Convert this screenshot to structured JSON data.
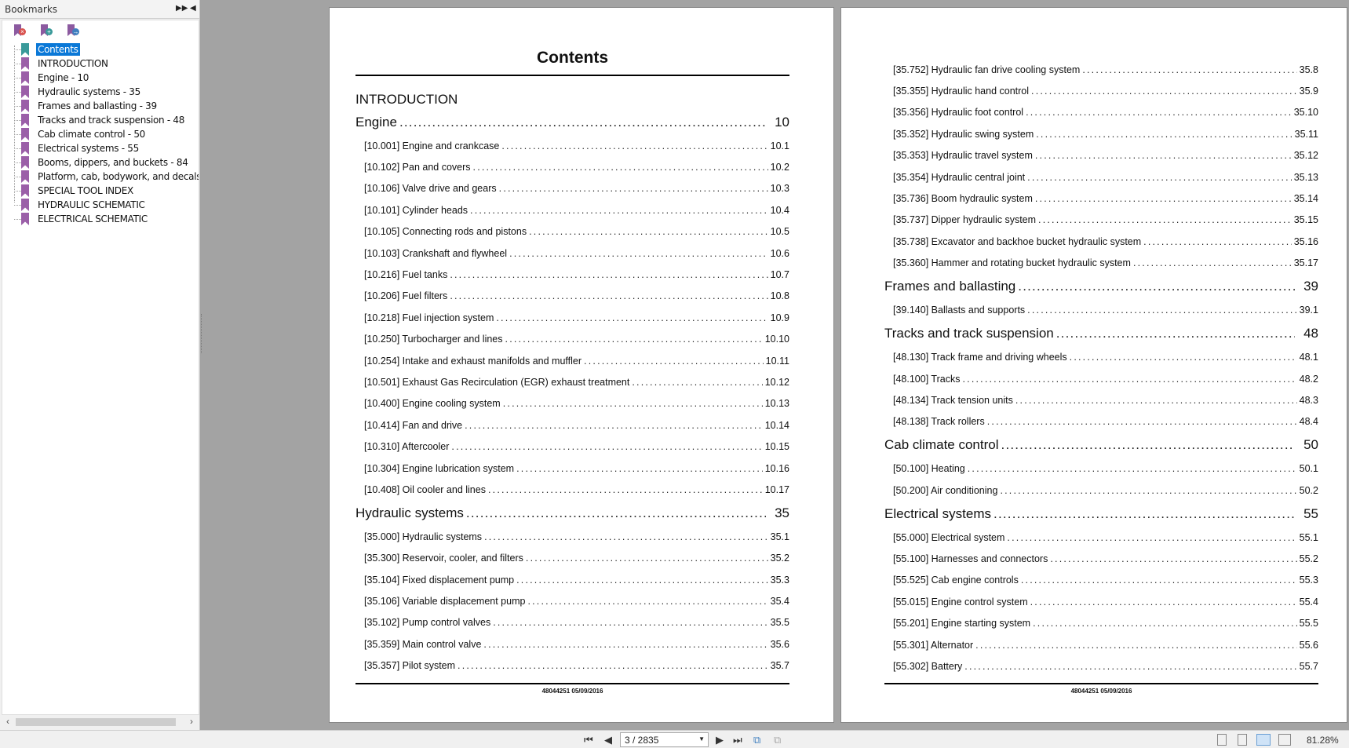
{
  "sidebar": {
    "title": "Bookmarks",
    "controls": {
      "options_icon": "double-arrow-right-icon",
      "collapse_icon": "triangle-left-icon"
    },
    "tools": [
      {
        "name": "delete-bookmark",
        "icon": "bookmark-delete-icon",
        "color": "#d9534f",
        "glyph": "×"
      },
      {
        "name": "add-bookmark",
        "icon": "bookmark-add-icon",
        "color": "#3a9a9a",
        "glyph": "+"
      },
      {
        "name": "goto-bookmark",
        "icon": "bookmark-goto-icon",
        "color": "#3f7fbf",
        "glyph": "→"
      }
    ],
    "items": [
      {
        "label": "Contents",
        "selected": true
      },
      {
        "label": "INTRODUCTION"
      },
      {
        "label": "Engine - 10"
      },
      {
        "label": "Hydraulic systems - 35"
      },
      {
        "label": "Frames and ballasting - 39"
      },
      {
        "label": "Tracks and track suspension - 48"
      },
      {
        "label": "Cab climate control - 50"
      },
      {
        "label": "Electrical systems - 55"
      },
      {
        "label": "Booms, dippers, and buckets - 84"
      },
      {
        "label": "Platform, cab, bodywork, and decals -"
      },
      {
        "label": "SPECIAL TOOL INDEX"
      },
      {
        "label": "HYDRAULIC SCHEMATIC"
      },
      {
        "label": "ELECTRICAL SCHEMATIC"
      }
    ],
    "selected_color": "#0a78d7"
  },
  "page1": {
    "title": "Contents",
    "footer": "48044251 05/09/2016",
    "lines": [
      {
        "type": "intro",
        "text": "INTRODUCTION"
      },
      {
        "type": "section",
        "text": "Engine",
        "page": "10"
      },
      {
        "type": "entry",
        "text": "[10.001] Engine and crankcase",
        "page": "10.1"
      },
      {
        "type": "entry",
        "text": "[10.102] Pan and covers",
        "page": "10.2"
      },
      {
        "type": "entry",
        "text": "[10.106] Valve drive and gears",
        "page": "10.3"
      },
      {
        "type": "entry",
        "text": "[10.101] Cylinder heads",
        "page": "10.4"
      },
      {
        "type": "entry",
        "text": "[10.105] Connecting rods and pistons",
        "page": "10.5"
      },
      {
        "type": "entry",
        "text": "[10.103] Crankshaft and flywheel",
        "page": "10.6"
      },
      {
        "type": "entry",
        "text": "[10.216] Fuel tanks",
        "page": "10.7"
      },
      {
        "type": "entry",
        "text": "[10.206] Fuel filters",
        "page": "10.8"
      },
      {
        "type": "entry",
        "text": "[10.218] Fuel injection system",
        "page": "10.9"
      },
      {
        "type": "entry",
        "text": "[10.250] Turbocharger and lines",
        "page": "10.10"
      },
      {
        "type": "entry",
        "text": "[10.254] Intake and exhaust manifolds and muffler",
        "page": "10.11"
      },
      {
        "type": "entry",
        "text": "[10.501] Exhaust Gas Recirculation (EGR) exhaust treatment",
        "page": "10.12"
      },
      {
        "type": "entry",
        "text": "[10.400] Engine cooling system",
        "page": "10.13"
      },
      {
        "type": "entry",
        "text": "[10.414] Fan and drive",
        "page": "10.14"
      },
      {
        "type": "entry",
        "text": "[10.310] Aftercooler",
        "page": "10.15"
      },
      {
        "type": "entry",
        "text": "[10.304] Engine lubrication system",
        "page": "10.16"
      },
      {
        "type": "entry",
        "text": "[10.408] Oil cooler and lines",
        "page": "10.17"
      },
      {
        "type": "section",
        "text": "Hydraulic systems",
        "page": "35"
      },
      {
        "type": "entry",
        "text": "[35.000] Hydraulic systems",
        "page": "35.1"
      },
      {
        "type": "entry",
        "text": "[35.300] Reservoir, cooler, and filters",
        "page": "35.2"
      },
      {
        "type": "entry",
        "text": "[35.104] Fixed displacement pump",
        "page": "35.3"
      },
      {
        "type": "entry",
        "text": "[35.106] Variable displacement pump",
        "page": "35.4"
      },
      {
        "type": "entry",
        "text": "[35.102] Pump control valves",
        "page": "35.5"
      },
      {
        "type": "entry",
        "text": "[35.359] Main control valve",
        "page": "35.6"
      },
      {
        "type": "entry",
        "text": "[35.357] Pilot system",
        "page": "35.7"
      }
    ]
  },
  "page2": {
    "footer": "48044251 05/09/2016",
    "lines": [
      {
        "type": "entry",
        "text": "[35.752] Hydraulic fan drive cooling system",
        "page": "35.8"
      },
      {
        "type": "entry",
        "text": "[35.355] Hydraulic hand control",
        "page": "35.9"
      },
      {
        "type": "entry",
        "text": "[35.356] Hydraulic foot control",
        "page": "35.10"
      },
      {
        "type": "entry",
        "text": "[35.352] Hydraulic swing system",
        "page": "35.11"
      },
      {
        "type": "entry",
        "text": "[35.353] Hydraulic travel system",
        "page": "35.12"
      },
      {
        "type": "entry",
        "text": "[35.354] Hydraulic central joint",
        "page": "35.13"
      },
      {
        "type": "entry",
        "text": "[35.736] Boom hydraulic system",
        "page": "35.14"
      },
      {
        "type": "entry",
        "text": "[35.737] Dipper hydraulic system",
        "page": "35.15"
      },
      {
        "type": "entry",
        "text": "[35.738] Excavator and backhoe bucket hydraulic system",
        "page": "35.16"
      },
      {
        "type": "entry",
        "text": "[35.360] Hammer and rotating bucket hydraulic system",
        "page": "35.17"
      },
      {
        "type": "section",
        "text": "Frames and ballasting",
        "page": "39"
      },
      {
        "type": "entry",
        "text": "[39.140] Ballasts and supports",
        "page": "39.1"
      },
      {
        "type": "section",
        "text": "Tracks and track suspension",
        "page": "48"
      },
      {
        "type": "entry",
        "text": "[48.130] Track frame and driving wheels",
        "page": "48.1"
      },
      {
        "type": "entry",
        "text": "[48.100] Tracks",
        "page": "48.2"
      },
      {
        "type": "entry",
        "text": "[48.134] Track tension units",
        "page": "48.3"
      },
      {
        "type": "entry",
        "text": "[48.138] Track rollers",
        "page": "48.4"
      },
      {
        "type": "section",
        "text": "Cab climate control",
        "page": "50"
      },
      {
        "type": "entry",
        "text": "[50.100] Heating",
        "page": "50.1"
      },
      {
        "type": "entry",
        "text": "[50.200] Air conditioning",
        "page": "50.2"
      },
      {
        "type": "section",
        "text": "Electrical systems",
        "page": "55"
      },
      {
        "type": "entry",
        "text": "[55.000] Electrical system",
        "page": "55.1"
      },
      {
        "type": "entry",
        "text": "[55.100] Harnesses and connectors",
        "page": "55.2"
      },
      {
        "type": "entry",
        "text": "[55.525] Cab engine controls",
        "page": "55.3"
      },
      {
        "type": "entry",
        "text": "[55.015] Engine control system",
        "page": "55.4"
      },
      {
        "type": "entry",
        "text": "[55.201] Engine starting system",
        "page": "55.5"
      },
      {
        "type": "entry",
        "text": "[55.301] Alternator",
        "page": "55.6"
      },
      {
        "type": "entry",
        "text": "[55.302] Battery",
        "page": "55.7"
      }
    ]
  },
  "toolbar": {
    "page_indicator": "3 / 2835",
    "zoom": "81.28%",
    "icons": {
      "first": "first-page-icon",
      "prev": "previous-page-icon",
      "next": "next-page-icon",
      "last": "last-page-icon"
    },
    "view_modes": [
      "single-page",
      "continuous",
      "facing",
      "continuous-facing"
    ],
    "active_view": "facing"
  }
}
